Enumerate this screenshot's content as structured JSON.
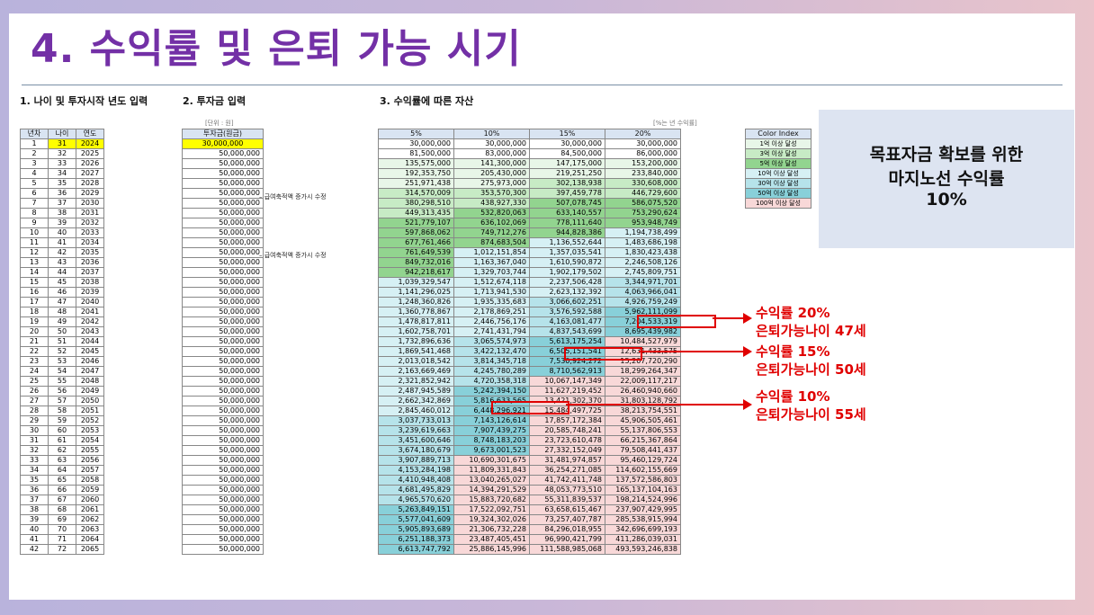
{
  "title": "4. 수익률 및 은퇴 가능 시기",
  "sections": {
    "s1": "1. 나이 및 투자시작 년도 입력",
    "s2": "2. 투자금 입력",
    "s3": "3. 수익률에 따른 자산"
  },
  "notes": {
    "unit": "[단위 : 원]",
    "rate": "[%는 년 수익률]"
  },
  "side_notes": {
    "row6": "급여축적액 증가시 수정",
    "row11": "급여축적액 증가시 수정"
  },
  "table1": {
    "headers": [
      "년차",
      "나이",
      "연도"
    ],
    "rows": [
      [
        "1",
        "31",
        "2024"
      ],
      [
        "2",
        "32",
        "2025"
      ],
      [
        "3",
        "33",
        "2026"
      ],
      [
        "4",
        "34",
        "2027"
      ],
      [
        "5",
        "35",
        "2028"
      ],
      [
        "6",
        "36",
        "2029"
      ],
      [
        "7",
        "37",
        "2030"
      ],
      [
        "8",
        "38",
        "2031"
      ],
      [
        "9",
        "39",
        "2032"
      ],
      [
        "10",
        "40",
        "2033"
      ],
      [
        "11",
        "41",
        "2034"
      ],
      [
        "12",
        "42",
        "2035"
      ],
      [
        "13",
        "43",
        "2036"
      ],
      [
        "14",
        "44",
        "2037"
      ],
      [
        "15",
        "45",
        "2038"
      ],
      [
        "16",
        "46",
        "2039"
      ],
      [
        "17",
        "47",
        "2040"
      ],
      [
        "18",
        "48",
        "2041"
      ],
      [
        "19",
        "49",
        "2042"
      ],
      [
        "20",
        "50",
        "2043"
      ],
      [
        "21",
        "51",
        "2044"
      ],
      [
        "22",
        "52",
        "2045"
      ],
      [
        "23",
        "53",
        "2046"
      ],
      [
        "24",
        "54",
        "2047"
      ],
      [
        "25",
        "55",
        "2048"
      ],
      [
        "26",
        "56",
        "2049"
      ],
      [
        "27",
        "57",
        "2050"
      ],
      [
        "28",
        "58",
        "2051"
      ],
      [
        "29",
        "59",
        "2052"
      ],
      [
        "30",
        "60",
        "2053"
      ],
      [
        "31",
        "61",
        "2054"
      ],
      [
        "32",
        "62",
        "2055"
      ],
      [
        "33",
        "63",
        "2056"
      ],
      [
        "34",
        "64",
        "2057"
      ],
      [
        "35",
        "65",
        "2058"
      ],
      [
        "36",
        "66",
        "2059"
      ],
      [
        "37",
        "67",
        "2060"
      ],
      [
        "38",
        "68",
        "2061"
      ],
      [
        "39",
        "69",
        "2062"
      ],
      [
        "40",
        "70",
        "2063"
      ],
      [
        "41",
        "71",
        "2064"
      ],
      [
        "42",
        "72",
        "2065"
      ]
    ]
  },
  "table2": {
    "header": "투자금(원금)",
    "values": [
      "30,000,000",
      "50,000,000",
      "50,000,000",
      "50,000,000",
      "50,000,000",
      "50,000,000",
      "50,000,000",
      "50,000,000",
      "50,000,000",
      "50,000,000",
      "50,000,000",
      "50,000,000",
      "50,000,000",
      "50,000,000",
      "50,000,000",
      "50,000,000",
      "50,000,000",
      "50,000,000",
      "50,000,000",
      "50,000,000",
      "50,000,000",
      "50,000,000",
      "50,000,000",
      "50,000,000",
      "50,000,000",
      "50,000,000",
      "50,000,000",
      "50,000,000",
      "50,000,000",
      "50,000,000",
      "50,000,000",
      "50,000,000",
      "50,000,000",
      "50,000,000",
      "50,000,000",
      "50,000,000",
      "50,000,000",
      "50,000,000",
      "50,000,000",
      "50,000,000",
      "50,000,000",
      "50,000,000"
    ]
  },
  "table3": {
    "headers": [
      "5%",
      "10%",
      "15%",
      "20%"
    ],
    "rows": [
      [
        "30,000,000",
        "30,000,000",
        "30,000,000",
        "30,000,000"
      ],
      [
        "81,500,000",
        "83,000,000",
        "84,500,000",
        "86,000,000"
      ],
      [
        "135,575,000",
        "141,300,000",
        "147,175,000",
        "153,200,000"
      ],
      [
        "192,353,750",
        "205,430,000",
        "219,251,250",
        "233,840,000"
      ],
      [
        "251,971,438",
        "275,973,000",
        "302,138,938",
        "330,608,000"
      ],
      [
        "314,570,009",
        "353,570,300",
        "397,459,778",
        "446,729,600"
      ],
      [
        "380,298,510",
        "438,927,330",
        "507,078,745",
        "586,075,520"
      ],
      [
        "449,313,435",
        "532,820,063",
        "633,140,557",
        "753,290,624"
      ],
      [
        "521,779,107",
        "636,102,069",
        "778,111,640",
        "953,948,749"
      ],
      [
        "597,868,062",
        "749,712,276",
        "944,828,386",
        "1,194,738,499"
      ],
      [
        "677,761,466",
        "874,683,504",
        "1,136,552,644",
        "1,483,686,198"
      ],
      [
        "761,649,539",
        "1,012,151,854",
        "1,357,035,541",
        "1,830,423,438"
      ],
      [
        "849,732,016",
        "1,163,367,040",
        "1,610,590,872",
        "2,246,508,126"
      ],
      [
        "942,218,617",
        "1,329,703,744",
        "1,902,179,502",
        "2,745,809,751"
      ],
      [
        "1,039,329,547",
        "1,512,674,118",
        "2,237,506,428",
        "3,344,971,701"
      ],
      [
        "1,141,296,025",
        "1,713,941,530",
        "2,623,132,392",
        "4,063,966,041"
      ],
      [
        "1,248,360,826",
        "1,935,335,683",
        "3,066,602,251",
        "4,926,759,249"
      ],
      [
        "1,360,778,867",
        "2,178,869,251",
        "3,576,592,588",
        "5,962,111,099"
      ],
      [
        "1,478,817,811",
        "2,446,756,176",
        "4,163,081,477",
        "7,204,533,319"
      ],
      [
        "1,602,758,701",
        "2,741,431,794",
        "4,837,543,699",
        "8,695,439,982"
      ],
      [
        "1,732,896,636",
        "3,065,574,973",
        "5,613,175,254",
        "10,484,527,979"
      ],
      [
        "1,869,541,468",
        "3,422,132,470",
        "6,505,151,541",
        "12,631,433,575"
      ],
      [
        "2,013,018,542",
        "3,814,345,718",
        "7,530,924,272",
        "15,207,720,290"
      ],
      [
        "2,163,669,469",
        "4,245,780,289",
        "8,710,562,913",
        "18,299,264,347"
      ],
      [
        "2,321,852,942",
        "4,720,358,318",
        "10,067,147,349",
        "22,009,117,217"
      ],
      [
        "2,487,945,589",
        "5,242,394,150",
        "11,627,219,452",
        "26,460,940,660"
      ],
      [
        "2,662,342,869",
        "5,816,633,565",
        "13,421,302,370",
        "31,803,128,792"
      ],
      [
        "2,845,460,012",
        "6,448,296,921",
        "15,484,497,725",
        "38,213,754,551"
      ],
      [
        "3,037,733,013",
        "7,143,126,614",
        "17,857,172,384",
        "45,906,505,461"
      ],
      [
        "3,239,619,663",
        "7,907,439,275",
        "20,585,748,241",
        "55,137,806,553"
      ],
      [
        "3,451,600,646",
        "8,748,183,203",
        "23,723,610,478",
        "66,215,367,864"
      ],
      [
        "3,674,180,679",
        "9,673,001,523",
        "27,332,152,049",
        "79,508,441,437"
      ],
      [
        "3,907,889,713",
        "10,690,301,675",
        "31,481,974,857",
        "95,460,129,724"
      ],
      [
        "4,153,284,198",
        "11,809,331,843",
        "36,254,271,085",
        "114,602,155,669"
      ],
      [
        "4,410,948,408",
        "13,040,265,027",
        "41,742,411,748",
        "137,572,586,803"
      ],
      [
        "4,681,495,829",
        "14,394,291,529",
        "48,053,773,510",
        "165,137,104,163"
      ],
      [
        "4,965,570,620",
        "15,883,720,682",
        "55,311,839,537",
        "198,214,524,996"
      ],
      [
        "5,263,849,151",
        "17,522,092,751",
        "63,658,615,467",
        "237,907,429,995"
      ],
      [
        "5,577,041,609",
        "19,324,302,026",
        "73,257,407,787",
        "285,538,915,994"
      ],
      [
        "5,905,893,689",
        "21,306,732,228",
        "84,296,018,955",
        "342,696,699,193"
      ],
      [
        "6,251,188,373",
        "23,487,405,451",
        "96,990,421,799",
        "411,286,039,031"
      ],
      [
        "6,613,747,792",
        "25,886,145,996",
        "111,588,985,068",
        "493,593,246,838"
      ]
    ]
  },
  "legend": {
    "header": "Color Index",
    "items": [
      {
        "label": "1억 이상 달성",
        "color": "#e8f6e8"
      },
      {
        "label": "3억 이상 달성",
        "color": "#c7ebc5"
      },
      {
        "label": "5억 이상 달성",
        "color": "#92d48f"
      },
      {
        "label": "10억 이상 달성",
        "color": "#d6f0f4"
      },
      {
        "label": "30억 이상 달성",
        "color": "#b6e3ea"
      },
      {
        "label": "50억 이상 달성",
        "color": "#88d0d9"
      },
      {
        "label": "100억 이상 달성",
        "color": "#f8d8d8"
      }
    ]
  },
  "callout": {
    "line1": "목표자금 확보를 위한",
    "line2": "마지노선 수익률",
    "line3": "10%"
  },
  "annotations": [
    {
      "line1": "수익률 20%",
      "line2": "은퇴가능나이 47세"
    },
    {
      "line1": "수익률 15%",
      "line2": "은퇴가능나이 50세"
    },
    {
      "line1": "수익률 10%",
      "line2": "은퇴가능나이 55세"
    }
  ],
  "colors": {
    "title": "#7330a6",
    "highlight": "#ffff00",
    "marker": "#e00000"
  }
}
